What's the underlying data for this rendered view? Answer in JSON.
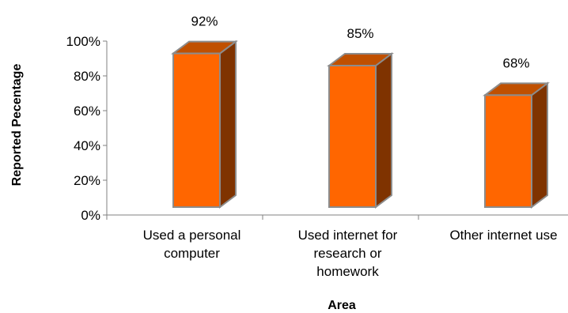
{
  "chart_data": {
    "type": "bar",
    "style": "3d-column",
    "categories": [
      [
        "Used a personal",
        "computer"
      ],
      [
        "Used internet for",
        "research or",
        "homework"
      ],
      [
        "Other internet use"
      ]
    ],
    "values": [
      92,
      85,
      68
    ],
    "data_labels": [
      "92%",
      "85%",
      "68%"
    ],
    "xlabel": "Area",
    "ylabel": "Reported Pecentage",
    "ylim": [
      0,
      100
    ],
    "yticks": [
      0,
      20,
      40,
      60,
      80,
      100
    ],
    "ytick_labels": [
      "0%",
      "20%",
      "40%",
      "60%",
      "80%",
      "100%"
    ],
    "grid": false,
    "legend": "none",
    "colors": {
      "bar_front": "#FF6600",
      "bar_side": "#7F3300",
      "bar_top": "#C05000",
      "bar_outline": "#8C8C8C",
      "axis": "#808080"
    }
  }
}
